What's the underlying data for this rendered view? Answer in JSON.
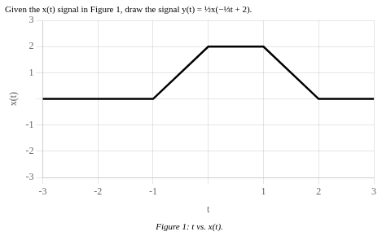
{
  "chart_data": {
    "type": "line",
    "title": "Given the x(t) signal in Figure 1, draw the signal y(t) = ½x(−⅓t + 2).",
    "subtitle": "Figure 1: t vs. x(t).",
    "xlabel": "t",
    "ylabel": "x(t)",
    "x": [
      -3,
      -1,
      0,
      1,
      2,
      3
    ],
    "values": [
      0,
      0,
      2,
      2,
      0,
      0
    ],
    "color": "black",
    "xlim": [
      -3,
      3
    ],
    "ylim": [
      -3,
      3
    ],
    "xticks": [
      -3,
      -2,
      -1,
      {
        "value": 0,
        "label": ""
      },
      1,
      2,
      3
    ],
    "yticks": [
      -3,
      -2,
      -1,
      {
        "value": 0,
        "label": ""
      },
      1,
      2,
      3
    ],
    "grid": true
  }
}
